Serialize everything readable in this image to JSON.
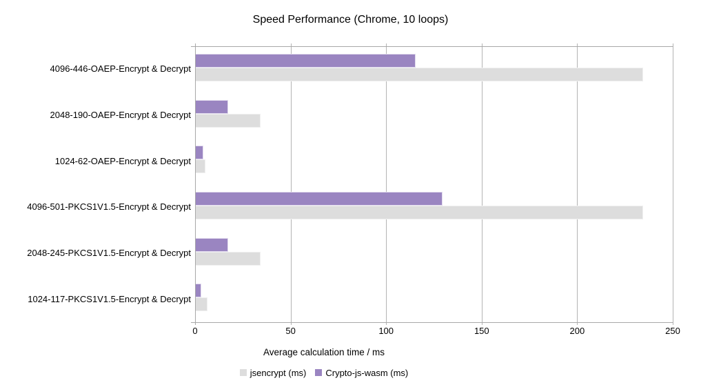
{
  "chart_data": {
    "type": "bar",
    "orientation": "horizontal",
    "title": "Speed Performance (Chrome, 10 loops)",
    "xlabel": "Average calculation time / ms",
    "categories": [
      "4096-446-OAEP-Encrypt & Decrypt",
      "2048-190-OAEP-Encrypt & Decrypt",
      "1024-62-OAEP-Encrypt & Decrypt",
      "4096-501-PKCS1V1.5-Encrypt & Decrypt",
      "2048-245-PKCS1V1.5-Encrypt & Decrypt",
      "1024-117-PKCS1V1.5-Encrypt & Decrypt"
    ],
    "series": [
      {
        "name": "jsencrypt (ms)",
        "color": "#dddddd",
        "border_color": "#efefef",
        "values": [
          234,
          34,
          5,
          234,
          34,
          6
        ]
      },
      {
        "name": "Crypto-js-wasm (ms)",
        "color": "#9a85c1",
        "border_color": "#e2dbee",
        "values": [
          115,
          17,
          4,
          129,
          17,
          3
        ]
      }
    ],
    "xlim": [
      0,
      250
    ],
    "xticks": [
      "0",
      "50",
      "100",
      "150",
      "200",
      "250"
    ],
    "grid": "vertical",
    "legend_position": "bottom"
  },
  "colors": {
    "axis_line": "#a8a8a8",
    "grid_line": "#b3b3b3",
    "text": "#000000",
    "background": "#ffffff"
  }
}
